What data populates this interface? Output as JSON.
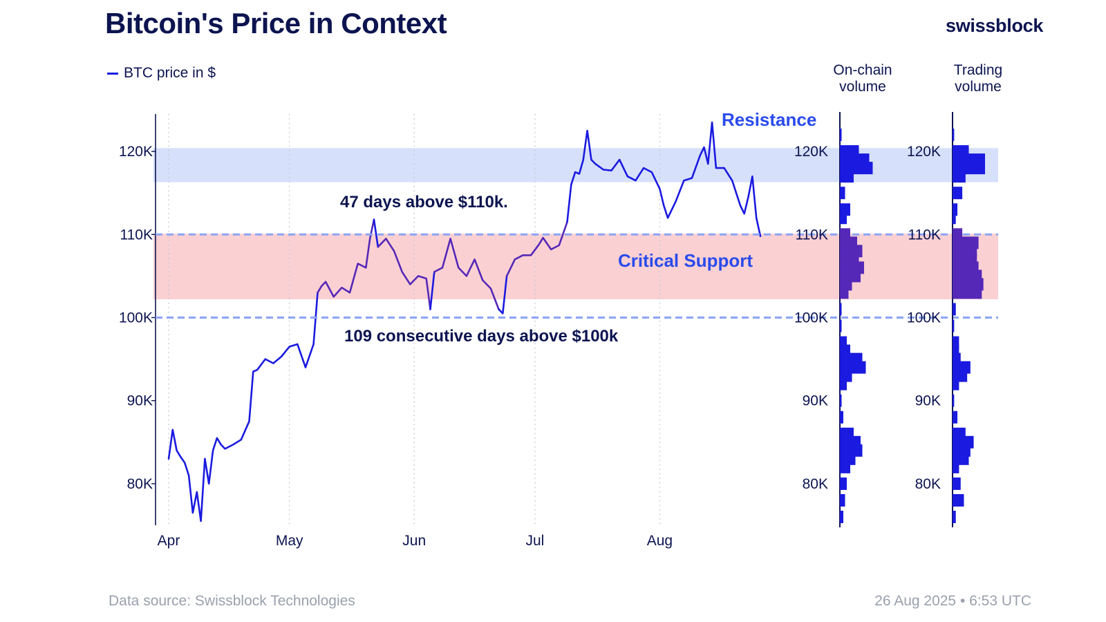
{
  "title": "Bitcoin's Price in Context",
  "brand": "swissblock",
  "footer": {
    "source": "Data source: Swissblock Technologies",
    "timestamp": "26 Aug 2025 • 6:53 UTC"
  },
  "colors": {
    "price_line": "#1a1ae0",
    "price_line_in_support": "#5528b8",
    "resistance_band": "#d6e0fa",
    "support_band": "#fbd0d3",
    "dashed_levels": "#8aa4f4",
    "title_text": "#0c1450",
    "resistance_label": "#2a4bea",
    "volume_bar": "#1a1ae0",
    "volume_bar_in_support": "#5528b8"
  },
  "chart_data": [
    {
      "type": "line",
      "series": [
        {
          "name": "BTC price in $",
          "x": [
            "2025-04-01",
            "2025-04-02",
            "2025-04-03",
            "2025-04-04",
            "2025-04-05",
            "2025-04-06",
            "2025-04-07",
            "2025-04-08",
            "2025-04-09",
            "2025-04-10",
            "2025-04-11",
            "2025-04-12",
            "2025-04-13",
            "2025-04-14",
            "2025-04-15",
            "2025-04-17",
            "2025-04-19",
            "2025-04-21",
            "2025-04-22",
            "2025-04-23",
            "2025-04-25",
            "2025-04-27",
            "2025-04-29",
            "2025-05-01",
            "2025-05-03",
            "2025-05-05",
            "2025-05-07",
            "2025-05-08",
            "2025-05-09",
            "2025-05-10",
            "2025-05-12",
            "2025-05-14",
            "2025-05-16",
            "2025-05-18",
            "2025-05-20",
            "2025-05-21",
            "2025-05-22",
            "2025-05-23",
            "2025-05-25",
            "2025-05-27",
            "2025-05-29",
            "2025-05-31",
            "2025-06-02",
            "2025-06-04",
            "2025-06-05",
            "2025-06-06",
            "2025-06-08",
            "2025-06-10",
            "2025-06-12",
            "2025-06-14",
            "2025-06-16",
            "2025-06-18",
            "2025-06-20",
            "2025-06-22",
            "2025-06-23",
            "2025-06-24",
            "2025-06-26",
            "2025-06-28",
            "2025-06-30",
            "2025-07-02",
            "2025-07-03",
            "2025-07-05",
            "2025-07-07",
            "2025-07-09",
            "2025-07-10",
            "2025-07-11",
            "2025-07-12",
            "2025-07-13",
            "2025-07-14",
            "2025-07-15",
            "2025-07-16",
            "2025-07-18",
            "2025-07-20",
            "2025-07-22",
            "2025-07-24",
            "2025-07-26",
            "2025-07-28",
            "2025-07-30",
            "2025-08-01",
            "2025-08-02",
            "2025-08-03",
            "2025-08-05",
            "2025-08-07",
            "2025-08-09",
            "2025-08-11",
            "2025-08-12",
            "2025-08-13",
            "2025-08-14",
            "2025-08-15",
            "2025-08-17",
            "2025-08-19",
            "2025-08-21",
            "2025-08-22",
            "2025-08-23",
            "2025-08-24",
            "2025-08-25",
            "2025-08-26"
          ],
          "values": [
            83000,
            86500,
            84000,
            83200,
            82500,
            81000,
            76500,
            79000,
            75500,
            83000,
            80000,
            84000,
            85500,
            84700,
            84200,
            84700,
            85300,
            87500,
            93500,
            93700,
            95000,
            94500,
            95300,
            96500,
            96800,
            94000,
            96800,
            103000,
            103800,
            104300,
            102500,
            103600,
            103000,
            106500,
            106000,
            109500,
            111800,
            108500,
            109500,
            108000,
            105500,
            104000,
            105000,
            104700,
            101000,
            105500,
            106000,
            109500,
            106000,
            105000,
            107000,
            104500,
            103500,
            101000,
            100500,
            105000,
            107000,
            107500,
            107500,
            108800,
            109600,
            108200,
            108700,
            111500,
            116000,
            117500,
            117300,
            119000,
            122500,
            119000,
            118500,
            117800,
            117700,
            119000,
            117000,
            116500,
            118000,
            117500,
            115500,
            113500,
            112000,
            114000,
            116500,
            116800,
            119500,
            120500,
            118500,
            123500,
            118000,
            118000,
            116500,
            113500,
            112500,
            114500,
            117000,
            112000,
            109800
          ]
        }
      ],
      "xlabel": "",
      "ylabel": "",
      "x_ticks": [
        "Apr",
        "May",
        "Jun",
        "Jul",
        "Aug"
      ],
      "y_ticks": [
        "80K",
        "90K",
        "100K",
        "110K",
        "120K"
      ],
      "ylim": [
        75000,
        124500
      ],
      "grid": "vertical dotted",
      "legend": "top-left",
      "bands": [
        {
          "name": "Resistance",
          "from": 116300,
          "to": 120400
        },
        {
          "name": "Critical Support",
          "from": 102200,
          "to": 110100
        }
      ],
      "levels": [
        100000,
        110000
      ],
      "annotations": [
        "47 days above $110k.",
        "109 consecutive days above $100k",
        "Resistance",
        "Critical Support"
      ]
    },
    {
      "type": "bar",
      "title": "On-chain\nvolume",
      "orientation": "horizontal",
      "y_ticks": [
        "80K",
        "90K",
        "100K",
        "110K",
        "120K"
      ],
      "categories": [
        76000,
        78000,
        80000,
        82000,
        83000,
        84000,
        85000,
        86000,
        88000,
        90000,
        92000,
        93000,
        94000,
        95000,
        96000,
        97000,
        99000,
        101000,
        103000,
        104000,
        105000,
        106000,
        107000,
        108000,
        109000,
        110000,
        112000,
        113000,
        115000,
        117000,
        118000,
        119000,
        120000,
        122000
      ],
      "values": [
        2,
        3,
        4,
        6,
        9,
        13,
        12,
        8,
        2,
        1,
        4,
        7,
        15,
        13,
        6,
        4,
        1,
        1,
        5,
        7,
        12,
        14,
        11,
        13,
        10,
        6,
        4,
        6,
        3,
        8,
        19,
        17,
        11,
        1
      ]
    },
    {
      "type": "bar",
      "title": "Trading\nvolume",
      "orientation": "horizontal",
      "y_ticks": [
        "80K",
        "90K",
        "100K",
        "110K",
        "120K"
      ],
      "categories": [
        76000,
        78000,
        80000,
        82000,
        83000,
        84000,
        85000,
        86000,
        88000,
        90000,
        92000,
        93000,
        94000,
        95000,
        96000,
        97000,
        99000,
        101000,
        103000,
        104000,
        105000,
        106000,
        107000,
        108000,
        109000,
        110000,
        112000,
        113000,
        115000,
        117000,
        118000,
        119000,
        120000,
        122000
      ],
      "values": [
        2,
        7,
        5,
        4,
        10,
        11,
        13,
        8,
        3,
        1,
        4,
        9,
        11,
        5,
        4,
        4,
        1,
        2,
        18,
        19,
        18,
        16,
        15,
        15,
        16,
        6,
        2,
        3,
        6,
        8,
        20,
        20,
        10,
        1
      ]
    }
  ]
}
